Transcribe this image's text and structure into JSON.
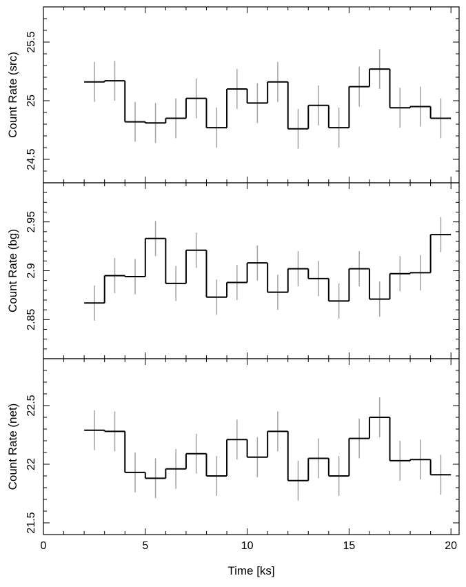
{
  "chart_data": {
    "type": "line",
    "subtype": "step-histogram with error bars (stacked light-curve panels)",
    "shared_x": {
      "label": "Time [ks]",
      "range": [
        0,
        20.4
      ],
      "major_ticks": [
        0,
        5,
        10,
        15,
        20
      ],
      "major_tick_labels": [
        "0",
        "5",
        "10",
        "15",
        "20"
      ],
      "minor_step": 1
    },
    "bins": {
      "left_edges": [
        2,
        3,
        4,
        5,
        6,
        7,
        8,
        9,
        10,
        11,
        12,
        13,
        14,
        15,
        16,
        17,
        18,
        19
      ],
      "centers": [
        2.5,
        3.5,
        4.5,
        5.5,
        6.5,
        7.5,
        8.5,
        9.5,
        10.5,
        11.5,
        12.5,
        13.5,
        14.5,
        15.5,
        16.5,
        17.5,
        18.5,
        19.5
      ],
      "width": 1
    },
    "panels": [
      {
        "ylabel": "Count Rate (src)",
        "ylim": [
          24.3,
          25.8
        ],
        "major_ticks": [
          24.5,
          25,
          25.5
        ],
        "major_tick_labels": [
          "24.5",
          "25",
          "25.5"
        ],
        "minor_step": 0.1,
        "values": [
          25.16,
          25.17,
          24.82,
          24.81,
          24.85,
          25.02,
          24.77,
          25.1,
          24.98,
          25.16,
          24.76,
          24.96,
          24.77,
          25.12,
          25.27,
          24.94,
          24.95,
          24.85
        ],
        "errors": [
          0.17,
          0.17,
          0.17,
          0.17,
          0.17,
          0.17,
          0.17,
          0.17,
          0.17,
          0.17,
          0.17,
          0.17,
          0.17,
          0.17,
          0.17,
          0.17,
          0.17,
          0.17
        ]
      },
      {
        "ylabel": "Count Rate (bg)",
        "ylim": [
          2.81,
          2.99
        ],
        "major_ticks": [
          2.85,
          2.9,
          2.95
        ],
        "major_tick_labels": [
          "2.85",
          "2.9",
          "2.95"
        ],
        "minor_step": 0.01,
        "values": [
          2.867,
          2.895,
          2.894,
          2.933,
          2.887,
          2.921,
          2.873,
          2.888,
          2.908,
          2.878,
          2.902,
          2.892,
          2.869,
          2.902,
          2.871,
          2.897,
          2.898,
          2.937
        ],
        "errors": [
          0.018,
          0.018,
          0.018,
          0.018,
          0.018,
          0.018,
          0.018,
          0.018,
          0.018,
          0.018,
          0.018,
          0.018,
          0.018,
          0.018,
          0.018,
          0.018,
          0.018,
          0.018
        ]
      },
      {
        "ylabel": "Count Rate (net)",
        "ylim": [
          21.4,
          22.9
        ],
        "major_ticks": [
          21.5,
          22,
          22.5
        ],
        "major_tick_labels": [
          "21.5",
          "22",
          "22.5"
        ],
        "minor_step": 0.1,
        "values": [
          22.29,
          22.28,
          21.93,
          21.88,
          21.96,
          22.09,
          21.9,
          22.21,
          22.06,
          22.28,
          21.86,
          22.05,
          21.9,
          22.22,
          22.4,
          22.03,
          22.04,
          21.91
        ],
        "errors": [
          0.17,
          0.17,
          0.17,
          0.17,
          0.17,
          0.17,
          0.17,
          0.17,
          0.17,
          0.17,
          0.17,
          0.17,
          0.17,
          0.17,
          0.17,
          0.17,
          0.17,
          0.17
        ]
      }
    ],
    "grid": false,
    "legend": "none",
    "colors": {
      "step_line": "#000000",
      "error_bars": "#a6a6a6",
      "axes": "#000000"
    }
  }
}
